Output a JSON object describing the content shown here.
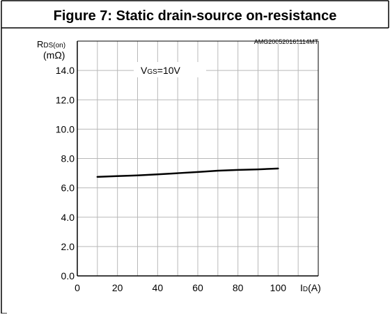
{
  "chart_data": {
    "type": "line",
    "title": "Figure 7: Static drain-source on-resistance",
    "code_label": "AMG200520161114MT",
    "ylabel": {
      "main": "R",
      "sub": "DS(on)",
      "unit": "(mΩ)"
    },
    "xlabel": {
      "main": "I",
      "sub": "D",
      "unit": "(A)"
    },
    "annotation": {
      "main": "V",
      "sub": "GS",
      "rest": "=10V"
    },
    "xlim": [
      0,
      120
    ],
    "ylim": [
      0,
      16
    ],
    "xticks": [
      0,
      20,
      40,
      60,
      80,
      100
    ],
    "yticks": [
      0,
      2,
      4,
      6,
      8,
      10,
      12,
      14
    ],
    "xtick_labels": [
      "0",
      "20",
      "40",
      "60",
      "80",
      "100"
    ],
    "ytick_labels": [
      "0.0",
      "2.0",
      "4.0",
      "6.0",
      "8.0",
      "10.0",
      "12.0",
      "14.0"
    ],
    "grid": true,
    "series": [
      {
        "x": [
          10,
          20,
          30,
          40,
          50,
          60,
          70,
          80,
          90,
          100
        ],
        "values": [
          6.75,
          6.8,
          6.85,
          6.92,
          7.0,
          7.08,
          7.17,
          7.22,
          7.26,
          7.32
        ]
      }
    ],
    "colors": {
      "line": "#000000",
      "grid": "#b8b8b8",
      "axis": "#000000"
    }
  }
}
